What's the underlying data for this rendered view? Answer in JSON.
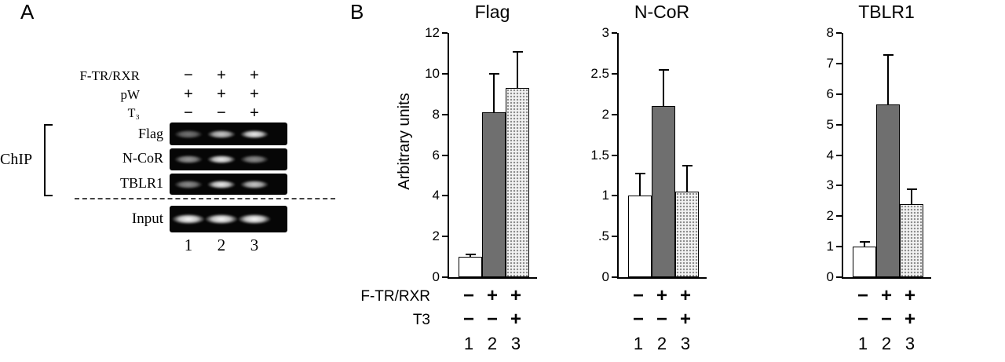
{
  "figure": {
    "panelA_label": "A",
    "panelB_label": "B"
  },
  "panelA": {
    "conditions": [
      {
        "label": "F-TR/RXR",
        "symbols": [
          "−",
          "+",
          "+"
        ]
      },
      {
        "label": "pW",
        "symbols": [
          "+",
          "+",
          "+"
        ]
      },
      {
        "label": "T₃",
        "symbols": [
          "−",
          "−",
          "+"
        ]
      }
    ],
    "chip_label": "ChIP",
    "gel_rows": [
      {
        "label": "Flag",
        "band_intensities": [
          0.45,
          0.8,
          0.95
        ]
      },
      {
        "label": "N-CoR",
        "band_intensities": [
          0.6,
          0.95,
          0.55
        ]
      },
      {
        "label": "TBLR1",
        "band_intensities": [
          0.55,
          0.95,
          0.8
        ]
      }
    ],
    "input_row": {
      "label": "Input",
      "band_intensities": [
        1,
        1,
        1
      ]
    },
    "lane_numbers": [
      "1",
      "2",
      "3"
    ]
  },
  "panelB": {
    "ylabel": "Arbitrary units",
    "row_labels": [
      "F-TR/RXR",
      "T3"
    ]
  },
  "chart_data": [
    {
      "type": "bar",
      "title": "Flag",
      "ylabel": "Arbitrary units",
      "ylim": [
        0,
        12
      ],
      "yticks": [
        {
          "label": "0",
          "value": 0
        },
        {
          "label": "2",
          "value": 2
        },
        {
          "label": "4",
          "value": 4
        },
        {
          "label": "6",
          "value": 6
        },
        {
          "label": "8",
          "value": 8
        },
        {
          "label": "10",
          "value": 10
        },
        {
          "label": "12",
          "value": 12
        }
      ],
      "categories": [
        "1",
        "2",
        "3"
      ],
      "condition_rows": [
        {
          "label": "F-TR/RXR",
          "symbols": [
            "−",
            "+",
            "+"
          ]
        },
        {
          "label": "T3",
          "symbols": [
            "−",
            "−",
            "+"
          ]
        }
      ],
      "bars": [
        {
          "value": 1.0,
          "error": 0.15,
          "fill": "white"
        },
        {
          "value": 8.1,
          "error": 1.95,
          "fill": "gray"
        },
        {
          "value": 9.3,
          "error": 1.8,
          "fill": "stipple"
        }
      ]
    },
    {
      "type": "bar",
      "title": "N-CoR",
      "ylim": [
        0,
        3
      ],
      "yticks": [
        {
          "label": "0",
          "value": 0
        },
        {
          "label": ".5",
          "value": 0.5
        },
        {
          "label": "1",
          "value": 1
        },
        {
          "label": "1.5",
          "value": 1.5
        },
        {
          "label": "2",
          "value": 2
        },
        {
          "label": "2.5",
          "value": 2.5
        },
        {
          "label": "3",
          "value": 3
        }
      ],
      "categories": [
        "1",
        "2",
        "3"
      ],
      "condition_rows": [
        {
          "label": "F-TR/RXR",
          "symbols": [
            "−",
            "+",
            "+"
          ]
        },
        {
          "label": "T3",
          "symbols": [
            "−",
            "−",
            "+"
          ]
        }
      ],
      "bars": [
        {
          "value": 1.0,
          "error": 0.28,
          "fill": "white"
        },
        {
          "value": 2.1,
          "error": 0.46,
          "fill": "gray"
        },
        {
          "value": 1.05,
          "error": 0.33,
          "fill": "stipple"
        }
      ]
    },
    {
      "type": "bar",
      "title": "TBLR1",
      "ylim": [
        0,
        8
      ],
      "yticks": [
        {
          "label": "0",
          "value": 0
        },
        {
          "label": "1",
          "value": 1
        },
        {
          "label": "2",
          "value": 2
        },
        {
          "label": "3",
          "value": 3
        },
        {
          "label": "4",
          "value": 4
        },
        {
          "label": "5",
          "value": 5
        },
        {
          "label": "6",
          "value": 6
        },
        {
          "label": "7",
          "value": 7
        },
        {
          "label": "8",
          "value": 8
        }
      ],
      "categories": [
        "1",
        "2",
        "3"
      ],
      "condition_rows": [
        {
          "label": "F-TR/RXR",
          "symbols": [
            "−",
            "+",
            "+"
          ]
        },
        {
          "label": "T3",
          "symbols": [
            "−",
            "−",
            "+"
          ]
        }
      ],
      "bars": [
        {
          "value": 1.0,
          "error": 0.18,
          "fill": "white"
        },
        {
          "value": 5.65,
          "error": 1.65,
          "fill": "gray"
        },
        {
          "value": 2.4,
          "error": 0.5,
          "fill": "stipple"
        }
      ]
    }
  ],
  "colors": {
    "bar_gray": "#6f6f6f",
    "bar_white": "#ffffff",
    "stipple_bg": "#f2f2f2",
    "stipple_dot": "#8a8a8a",
    "gel_bg": "#060606"
  }
}
